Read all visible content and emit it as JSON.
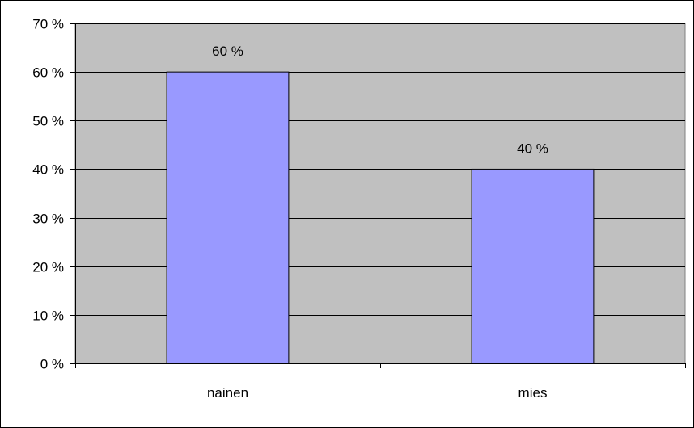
{
  "chart_data": {
    "type": "bar",
    "title": "",
    "xlabel": "",
    "ylabel": "",
    "categories": [
      "nainen",
      "mies"
    ],
    "values": [
      60,
      40
    ],
    "data_labels": [
      "60 %",
      "40 %"
    ],
    "ylim": [
      0,
      70
    ],
    "yticks": [
      0,
      10,
      20,
      30,
      40,
      50,
      60,
      70
    ],
    "ytick_labels": [
      "0 %",
      "10 %",
      "20 %",
      "30 %",
      "40 %",
      "50 %",
      "60 %",
      "70 %"
    ],
    "grid": true,
    "legend": "none",
    "colors": {
      "bar_fill": "#9999ff",
      "bar_stroke": "#000000",
      "plot_background": "#c0c0c0",
      "gridline": "#000000"
    }
  }
}
